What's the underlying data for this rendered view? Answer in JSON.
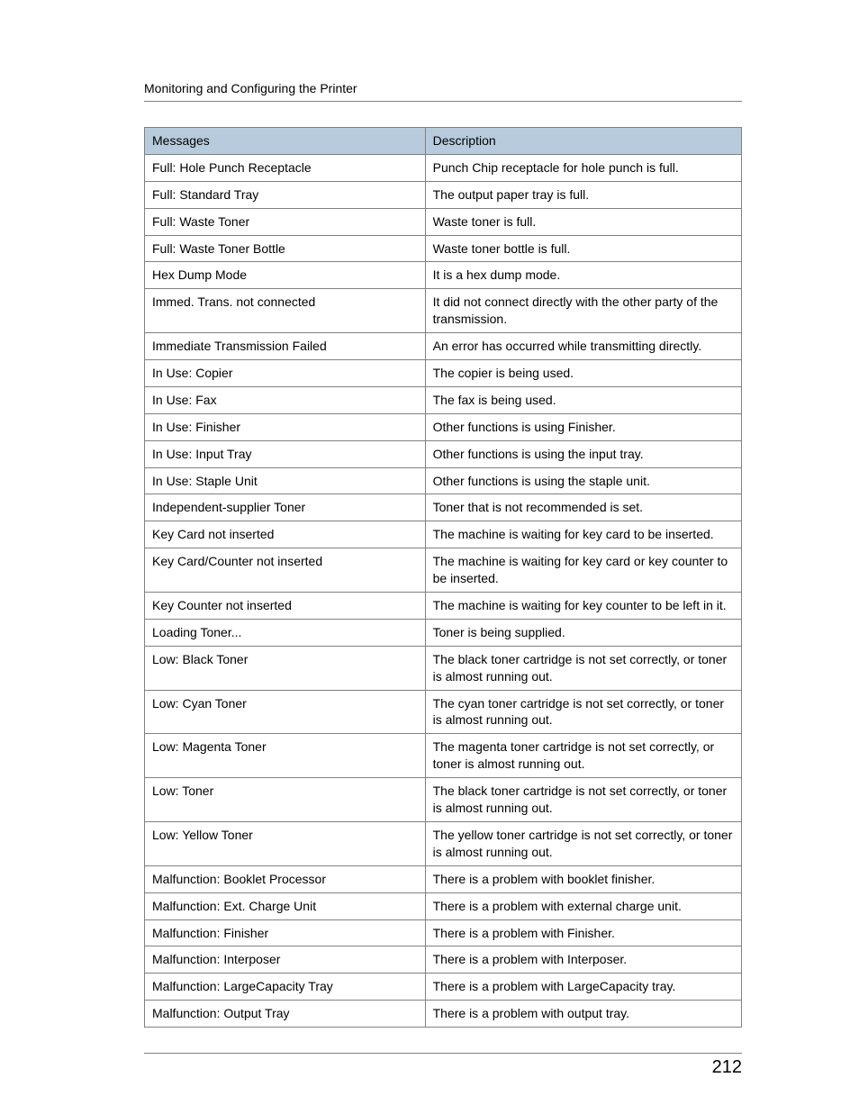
{
  "page": {
    "header_title": "Monitoring and Configuring the Printer",
    "page_number": "212",
    "table": {
      "header_bg": "#b8cbdd",
      "border_color": "#808080",
      "columns": [
        "Messages",
        "Description"
      ],
      "rows": [
        [
          "Full: Hole Punch Receptacle",
          "Punch Chip receptacle for hole punch is full."
        ],
        [
          "Full: Standard Tray",
          "The output paper tray is full."
        ],
        [
          "Full: Waste Toner",
          "Waste toner is full."
        ],
        [
          "Full: Waste Toner Bottle",
          "Waste toner bottle is full."
        ],
        [
          "Hex Dump Mode",
          "It is a hex dump mode."
        ],
        [
          "Immed. Trans. not connected",
          "It did not connect directly with the other party of the transmission."
        ],
        [
          "Immediate Transmission Failed",
          "An error has occurred while transmitting directly."
        ],
        [
          "In Use: Copier",
          "The copier is being used."
        ],
        [
          "In Use: Fax",
          "The fax is being used."
        ],
        [
          "In Use: Finisher",
          "Other functions is using Finisher."
        ],
        [
          "In Use: Input Tray",
          "Other functions is using the input tray."
        ],
        [
          "In Use: Staple Unit",
          "Other functions is using the staple unit."
        ],
        [
          "Independent-supplier Toner",
          "Toner that is not recommended is set."
        ],
        [
          "Key Card not inserted",
          "The machine is waiting for key card to be inserted."
        ],
        [
          "Key Card/Counter not inserted",
          "The machine is waiting for key card or key counter to be inserted."
        ],
        [
          "Key Counter not inserted",
          "The machine is waiting for key counter to be left in it."
        ],
        [
          "Loading Toner...",
          "Toner is being supplied."
        ],
        [
          "Low: Black Toner",
          "The black toner cartridge is not set correctly, or toner is almost running out."
        ],
        [
          "Low: Cyan Toner",
          "The cyan toner cartridge is not set correctly, or toner is almost running out."
        ],
        [
          "Low: Magenta Toner",
          "The magenta toner cartridge is not set correctly, or toner is almost running out."
        ],
        [
          "Low: Toner",
          "The black toner cartridge is not set correctly, or toner is almost running out."
        ],
        [
          "Low: Yellow Toner",
          "The yellow toner cartridge is not set correctly, or toner is almost running out."
        ],
        [
          "Malfunction: Booklet Processor",
          "There is a problem with booklet finisher."
        ],
        [
          "Malfunction: Ext. Charge Unit",
          "There is a problem with external charge unit."
        ],
        [
          "Malfunction: Finisher",
          "There is a problem with Finisher."
        ],
        [
          "Malfunction: Interposer",
          "There is a problem with Interposer."
        ],
        [
          "Malfunction: LargeCapacity Tray",
          "There is a problem with LargeCapacity tray."
        ],
        [
          "Malfunction: Output Tray",
          "There is a problem with output tray."
        ]
      ]
    }
  }
}
